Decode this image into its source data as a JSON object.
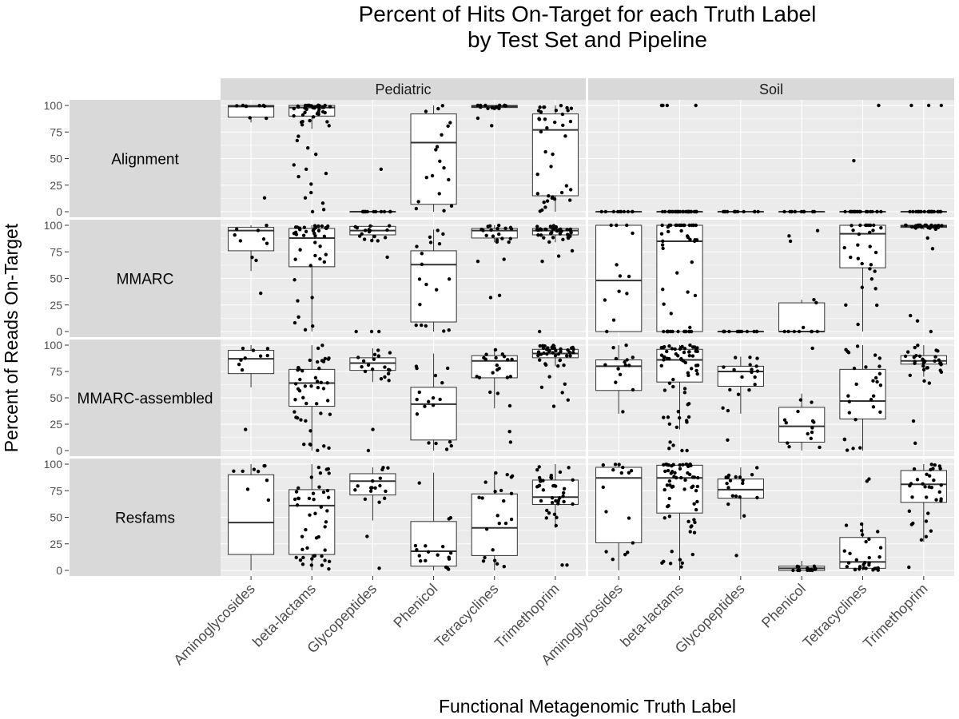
{
  "chart_data": {
    "type": "box",
    "title": [
      "Percent of Hits On-Target for each Truth Label",
      "by Test Set and Pipeline"
    ],
    "xlabel": "Functional Metagenomic Truth Label",
    "ylabel": "Percent of Reads On-Target",
    "ylim": [
      0,
      100
    ],
    "yticks": [
      0,
      25,
      50,
      75,
      100
    ],
    "columns": [
      "Pediatric",
      "Soil"
    ],
    "rows": [
      "Alignment",
      "MMARC",
      "MMARC-assembled",
      "Resfams"
    ],
    "categories": [
      "Aminoglycosides",
      "beta-lactams",
      "Glycopeptides",
      "Phenicol",
      "Tetracyclines",
      "Trimethoprim"
    ],
    "grid": true,
    "panels": [
      {
        "row": "Alignment",
        "column": "Pediatric",
        "boxes": [
          {
            "category": "Aminoglycosides",
            "q1": 89,
            "median": 99,
            "q3": 100,
            "lower": 84,
            "upper": 100,
            "n": 9,
            "outliers": [
              13
            ]
          },
          {
            "category": "beta-lactams",
            "q1": 90,
            "median": 98,
            "q3": 100,
            "lower": 78,
            "upper": 100,
            "n": 40,
            "outliers": [
              0,
              2,
              8,
              13,
              18,
              26,
              33,
              36,
              40,
              44,
              54,
              60,
              67,
              71
            ]
          },
          {
            "category": "Glycopeptides",
            "q1": 0,
            "median": 0,
            "q3": 0,
            "lower": 0,
            "upper": 0,
            "n": 12,
            "outliers": [
              40
            ]
          },
          {
            "category": "Phenicol",
            "q1": 7,
            "median": 65,
            "q3": 92,
            "lower": 0,
            "upper": 100,
            "n": 18
          },
          {
            "category": "Tetracyclines",
            "q1": 98,
            "median": 99,
            "q3": 100,
            "lower": 97,
            "upper": 100,
            "n": 16,
            "outliers": [
              81,
              88
            ]
          },
          {
            "category": "Trimethoprim",
            "q1": 15,
            "median": 77,
            "q3": 92,
            "lower": 0,
            "upper": 100,
            "n": 38
          }
        ]
      },
      {
        "row": "Alignment",
        "column": "Soil",
        "boxes": [
          {
            "category": "Aminoglycosides",
            "q1": 0,
            "median": 0,
            "q3": 0,
            "lower": 0,
            "upper": 0,
            "n": 10
          },
          {
            "category": "beta-lactams",
            "q1": 0,
            "median": 0,
            "q3": 0,
            "lower": 0,
            "upper": 0,
            "n": 30,
            "outliers": [
              100,
              100,
              100,
              100
            ]
          },
          {
            "category": "Glycopeptides",
            "q1": 0,
            "median": 0,
            "q3": 0,
            "lower": 0,
            "upper": 0,
            "n": 12
          },
          {
            "category": "Phenicol",
            "q1": 0,
            "median": 0,
            "q3": 0,
            "lower": 0,
            "upper": 0,
            "n": 10
          },
          {
            "category": "Tetracyclines",
            "q1": 0,
            "median": 0,
            "q3": 0,
            "lower": 0,
            "upper": 0,
            "n": 20,
            "outliers": [
              48,
              100
            ]
          },
          {
            "category": "Trimethoprim",
            "q1": 0,
            "median": 0,
            "q3": 0,
            "lower": 0,
            "upper": 0,
            "n": 22,
            "outliers": [
              100,
              100,
              100
            ]
          }
        ]
      },
      {
        "row": "MMARC",
        "column": "Pediatric",
        "boxes": [
          {
            "category": "Aminoglycosides",
            "q1": 76,
            "median": 95,
            "q3": 98,
            "lower": 57,
            "upper": 100,
            "n": 9,
            "outliers": [
              36
            ]
          },
          {
            "category": "beta-lactams",
            "q1": 61,
            "median": 88,
            "q3": 97,
            "lower": 0,
            "upper": 100,
            "n": 40
          },
          {
            "category": "Glycopeptides",
            "q1": 91,
            "median": 95,
            "q3": 99,
            "lower": 85,
            "upper": 100,
            "n": 16,
            "outliers": [
              0,
              0,
              0,
              70
            ]
          },
          {
            "category": "Phenicol",
            "q1": 9,
            "median": 63,
            "q3": 76,
            "lower": 0,
            "upper": 96,
            "n": 18
          },
          {
            "category": "Tetracyclines",
            "q1": 88,
            "median": 95,
            "q3": 97,
            "lower": 84,
            "upper": 100,
            "n": 18,
            "outliers": [
              32,
              34,
              66,
              68
            ]
          },
          {
            "category": "Trimethoprim",
            "q1": 91,
            "median": 95,
            "q3": 97,
            "lower": 84,
            "upper": 100,
            "n": 40,
            "outliers": [
              0,
              66,
              71,
              76
            ]
          }
        ]
      },
      {
        "row": "MMARC",
        "column": "Soil",
        "boxes": [
          {
            "category": "Aminoglycosides",
            "q1": 0,
            "median": 48,
            "q3": 100,
            "lower": 0,
            "upper": 100,
            "n": 12
          },
          {
            "category": "beta-lactams",
            "q1": 0,
            "median": 85,
            "q3": 100,
            "lower": 0,
            "upper": 100,
            "n": 50
          },
          {
            "category": "Glycopeptides",
            "q1": 0,
            "median": 0,
            "q3": 0,
            "lower": 0,
            "upper": 0,
            "n": 12
          },
          {
            "category": "Phenicol",
            "q1": 0,
            "median": 0,
            "q3": 27,
            "lower": 0,
            "upper": 30,
            "n": 10,
            "outliers": [
              85,
              90,
              95
            ]
          },
          {
            "category": "Tetracyclines",
            "q1": 60,
            "median": 92,
            "q3": 100,
            "lower": 0,
            "upper": 100,
            "n": 28
          },
          {
            "category": "Trimethoprim",
            "q1": 98,
            "median": 99,
            "q3": 100,
            "lower": 96,
            "upper": 100,
            "n": 30,
            "outliers": [
              0,
              10,
              15,
              78,
              88
            ]
          }
        ]
      },
      {
        "row": "MMARC-assembled",
        "column": "Pediatric",
        "boxes": [
          {
            "category": "Aminoglycosides",
            "q1": 73,
            "median": 87,
            "q3": 95,
            "lower": 60,
            "upper": 100,
            "n": 9,
            "outliers": [
              20
            ]
          },
          {
            "category": "beta-lactams",
            "q1": 42,
            "median": 64,
            "q3": 77,
            "lower": 0,
            "upper": 100,
            "n": 45
          },
          {
            "category": "Glycopeptides",
            "q1": 76,
            "median": 83,
            "q3": 88,
            "lower": 65,
            "upper": 97,
            "n": 18,
            "outliers": [
              0,
              20
            ]
          },
          {
            "category": "Phenicol",
            "q1": 10,
            "median": 44,
            "q3": 60,
            "lower": 0,
            "upper": 92,
            "n": 18
          },
          {
            "category": "Tetracyclines",
            "q1": 69,
            "median": 85,
            "q3": 90,
            "lower": 40,
            "upper": 96,
            "n": 20,
            "outliers": [
              8,
              18
            ]
          },
          {
            "category": "Trimethoprim",
            "q1": 88,
            "median": 92,
            "q3": 96,
            "lower": 80,
            "upper": 100,
            "n": 38,
            "outliers": [
              42,
              48,
              55,
              60,
              63,
              70
            ]
          }
        ]
      },
      {
        "row": "MMARC-assembled",
        "column": "Soil",
        "boxes": [
          {
            "category": "Aminoglycosides",
            "q1": 57,
            "median": 80,
            "q3": 86,
            "lower": 35,
            "upper": 100,
            "n": 14
          },
          {
            "category": "beta-lactams",
            "q1": 65,
            "median": 86,
            "q3": 96,
            "lower": 20,
            "upper": 100,
            "n": 60,
            "outliers": [
              0,
              0,
              2,
              5,
              8
            ]
          },
          {
            "category": "Glycopeptides",
            "q1": 61,
            "median": 75,
            "q3": 80,
            "lower": 35,
            "upper": 89,
            "n": 18,
            "outliers": [
              10
            ]
          },
          {
            "category": "Phenicol",
            "q1": 8,
            "median": 23,
            "q3": 41,
            "lower": 0,
            "upper": 54,
            "n": 14,
            "outliers": [
              97
            ]
          },
          {
            "category": "Tetracyclines",
            "q1": 30,
            "median": 47,
            "q3": 77,
            "lower": 0,
            "upper": 100,
            "n": 28
          },
          {
            "category": "Trimethoprim",
            "q1": 82,
            "median": 85,
            "q3": 90,
            "lower": 70,
            "upper": 100,
            "n": 30,
            "outliers": [
              7,
              28,
              64,
              66
            ]
          }
        ]
      },
      {
        "row": "Resfams",
        "column": "Pediatric",
        "boxes": [
          {
            "category": "Aminoglycosides",
            "q1": 15,
            "median": 45,
            "q3": 90,
            "lower": 0,
            "upper": 100,
            "n": 9
          },
          {
            "category": "beta-lactams",
            "q1": 15,
            "median": 61,
            "q3": 76,
            "lower": 0,
            "upper": 100,
            "n": 45
          },
          {
            "category": "Glycopeptides",
            "q1": 71,
            "median": 84,
            "q3": 91,
            "lower": 47,
            "upper": 97,
            "n": 16,
            "outliers": [
              2,
              32
            ]
          },
          {
            "category": "Phenicol",
            "q1": 4,
            "median": 18,
            "q3": 46,
            "lower": 0,
            "upper": 92,
            "n": 18
          },
          {
            "category": "Tetracyclines",
            "q1": 14,
            "median": 40,
            "q3": 72,
            "lower": 0,
            "upper": 93,
            "n": 22
          },
          {
            "category": "Trimethoprim",
            "q1": 62,
            "median": 69,
            "q3": 85,
            "lower": 40,
            "upper": 100,
            "n": 38,
            "outliers": [
              5,
              5
            ]
          }
        ]
      },
      {
        "row": "Resfams",
        "column": "Soil",
        "boxes": [
          {
            "category": "Aminoglycosides",
            "q1": 26,
            "median": 87,
            "q3": 97,
            "lower": 0,
            "upper": 100,
            "n": 16
          },
          {
            "category": "beta-lactams",
            "q1": 54,
            "median": 87,
            "q3": 99,
            "lower": 0,
            "upper": 100,
            "n": 65
          },
          {
            "category": "Glycopeptides",
            "q1": 68,
            "median": 76,
            "q3": 86,
            "lower": 48,
            "upper": 97,
            "n": 18,
            "outliers": [
              14
            ]
          },
          {
            "category": "Phenicol",
            "q1": 0,
            "median": 2,
            "q3": 4,
            "lower": 0,
            "upper": 9,
            "n": 14
          },
          {
            "category": "Tetracyclines",
            "q1": 2,
            "median": 8,
            "q3": 31,
            "lower": 0,
            "upper": 45,
            "n": 30,
            "outliers": [
              84,
              86
            ]
          },
          {
            "category": "Trimethoprim",
            "q1": 64,
            "median": 81,
            "q3": 94,
            "lower": 27,
            "upper": 100,
            "n": 32,
            "outliers": [
              3
            ]
          }
        ]
      }
    ]
  },
  "colors": {
    "panel_bg": "#ebebeb",
    "strip_bg": "#d9d9d9",
    "gridline": "#ffffff",
    "box_fill": "#ffffff",
    "box_line": "#333333",
    "point": "#000000"
  }
}
